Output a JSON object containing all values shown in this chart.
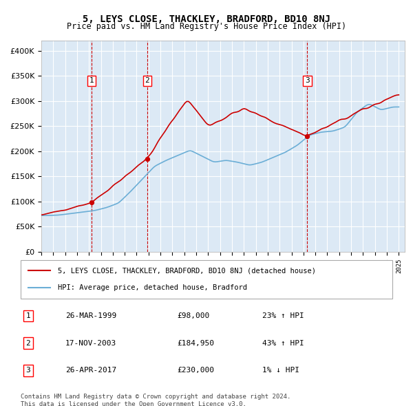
{
  "title": "5, LEYS CLOSE, THACKLEY, BRADFORD, BD10 8NJ",
  "subtitle": "Price paid vs. HM Land Registry's House Price Index (HPI)",
  "legend_line1": "5, LEYS CLOSE, THACKLEY, BRADFORD, BD10 8NJ (detached house)",
  "legend_line2": "HPI: Average price, detached house, Bradford",
  "footnote": "Contains HM Land Registry data © Crown copyright and database right 2024.\nThis data is licensed under the Open Government Licence v3.0.",
  "transactions": [
    {
      "num": 1,
      "date": "26-MAR-1999",
      "price": 98000,
      "pct": "23%",
      "dir": "↑",
      "year": 1999.23
    },
    {
      "num": 2,
      "date": "17-NOV-2003",
      "price": 184950,
      "pct": "43%",
      "dir": "↑",
      "year": 2003.88
    },
    {
      "num": 3,
      "date": "26-APR-2017",
      "price": 230000,
      "pct": "1%",
      "dir": "↓",
      "year": 2017.32
    }
  ],
  "hpi_color": "#6baed6",
  "property_color": "#cc0000",
  "dashed_vline_color": "#cc0000",
  "background_color": "#dce9f5",
  "ylim": [
    0,
    420000
  ],
  "yticks": [
    0,
    50000,
    100000,
    150000,
    200000,
    250000,
    300000,
    350000,
    400000
  ],
  "xmin": 1995,
  "xmax": 2025.5
}
